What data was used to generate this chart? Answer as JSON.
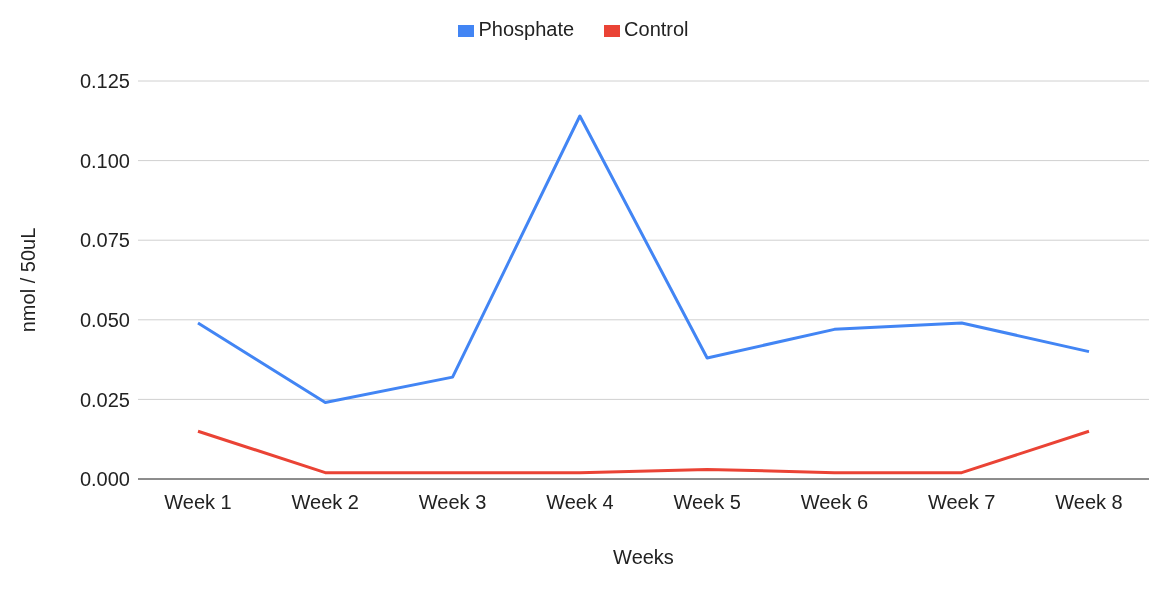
{
  "chart_data": {
    "type": "line",
    "xlabel": "Weeks",
    "ylabel": "nmol / 50uL",
    "categories": [
      "Week 1",
      "Week 2",
      "Week 3",
      "Week 4",
      "Week 5",
      "Week 6",
      "Week 7",
      "Week 8"
    ],
    "series": [
      {
        "name": "Phosphate",
        "color": "#4285f4",
        "values": [
          0.049,
          0.024,
          0.032,
          0.114,
          0.038,
          0.047,
          0.049,
          0.04
        ]
      },
      {
        "name": "Control",
        "color": "#ea4335",
        "values": [
          0.015,
          0.002,
          0.002,
          0.002,
          0.003,
          0.002,
          0.002,
          0.015
        ]
      }
    ],
    "ylim": [
      0,
      0.125
    ],
    "yticks": [
      {
        "value": 0,
        "label": "0.000"
      },
      {
        "value": 0.025,
        "label": "0.025"
      },
      {
        "value": 0.05,
        "label": "0.050"
      },
      {
        "value": 0.075,
        "label": "0.075"
      },
      {
        "value": 0.1,
        "label": "0.100"
      },
      {
        "value": 0.125,
        "label": "0.125"
      }
    ],
    "grid": "y",
    "legend": "top",
    "marker": "none",
    "line_style": "solid"
  }
}
